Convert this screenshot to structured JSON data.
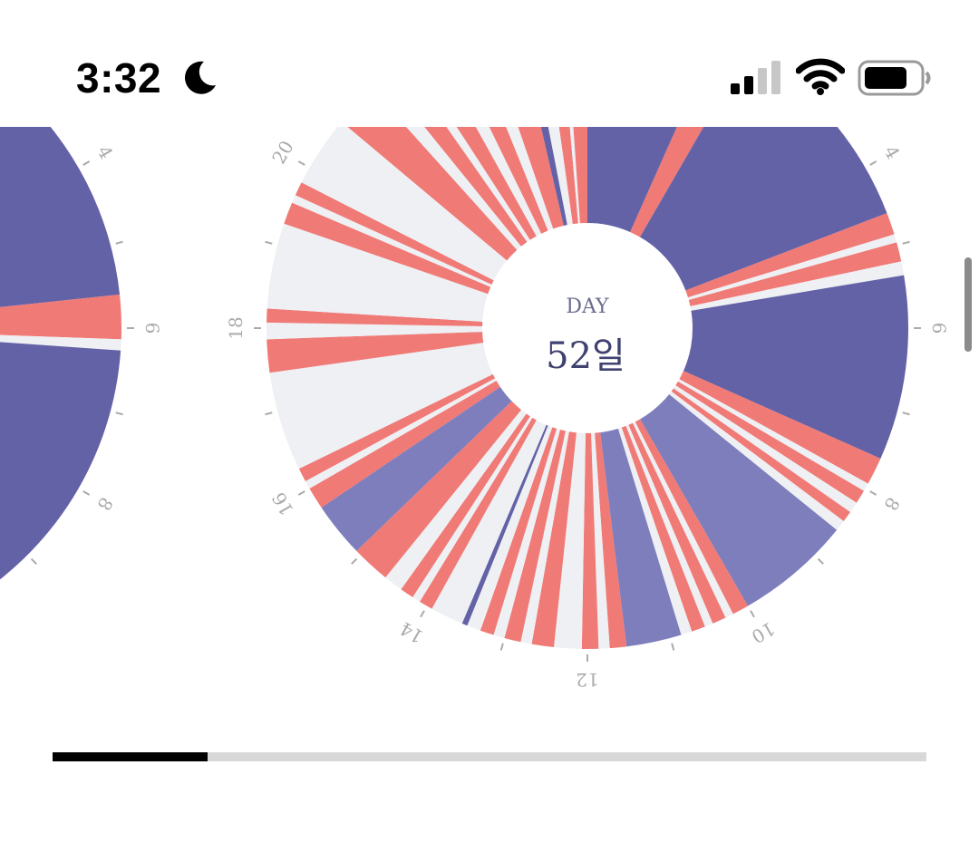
{
  "status_bar": {
    "time": "3:32",
    "moon_icon": "moon-icon",
    "signal_icon": "cellular-signal-icon",
    "wifi_icon": "wifi-icon",
    "battery_icon": "battery-icon"
  },
  "chart_card": {
    "day_prefix": "DAY",
    "day_value": "52일",
    "hour_ticks": [
      "4",
      "6",
      "8",
      "10",
      "12",
      "14",
      "16",
      "18",
      "20"
    ],
    "side_chart_ticks": [
      "4",
      "6",
      "8"
    ]
  },
  "colors": {
    "purple": "#6462a6",
    "light_purple": "#7f7ebd",
    "coral": "#f07a76",
    "pale": "#eef0f4",
    "tick": "#aaaaaa"
  },
  "progress": {
    "fraction": 0.177
  }
}
